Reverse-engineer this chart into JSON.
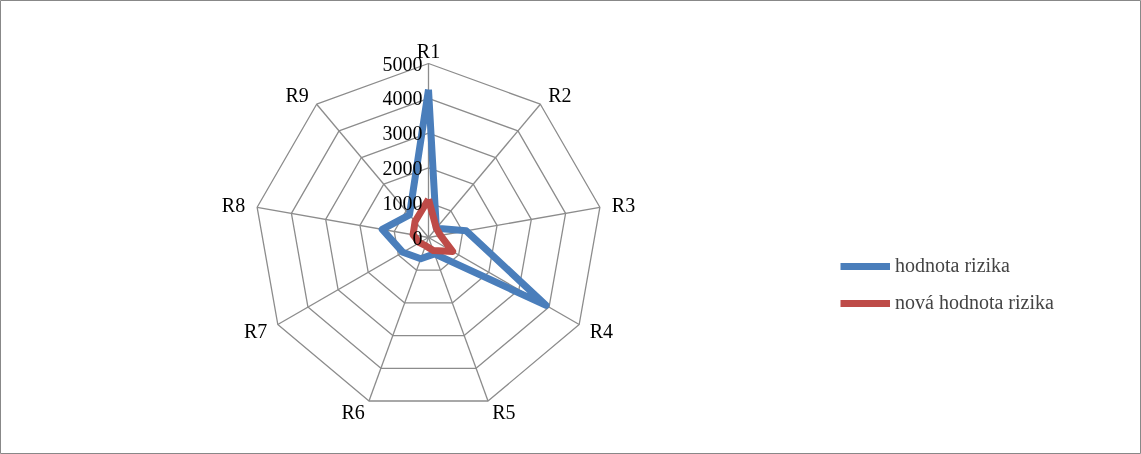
{
  "chart_data": {
    "type": "radar",
    "categories": [
      "R1",
      "R2",
      "R3",
      "R4",
      "R5",
      "R6",
      "R7",
      "R8",
      "R9"
    ],
    "series": [
      {
        "name": "hodnota rizika",
        "color": "#4a7ebb",
        "values": [
          4250,
          350,
          1100,
          3900,
          500,
          650,
          850,
          1350,
          850
        ]
      },
      {
        "name": "nová hodnota rizika",
        "color": "#be4b48",
        "values": [
          1100,
          350,
          350,
          800,
          400,
          250,
          300,
          450,
          600
        ]
      }
    ],
    "ylim": [
      0,
      5000
    ],
    "yticks": [
      0,
      1000,
      2000,
      3000,
      4000,
      5000
    ],
    "grid": true,
    "legend": "right"
  }
}
